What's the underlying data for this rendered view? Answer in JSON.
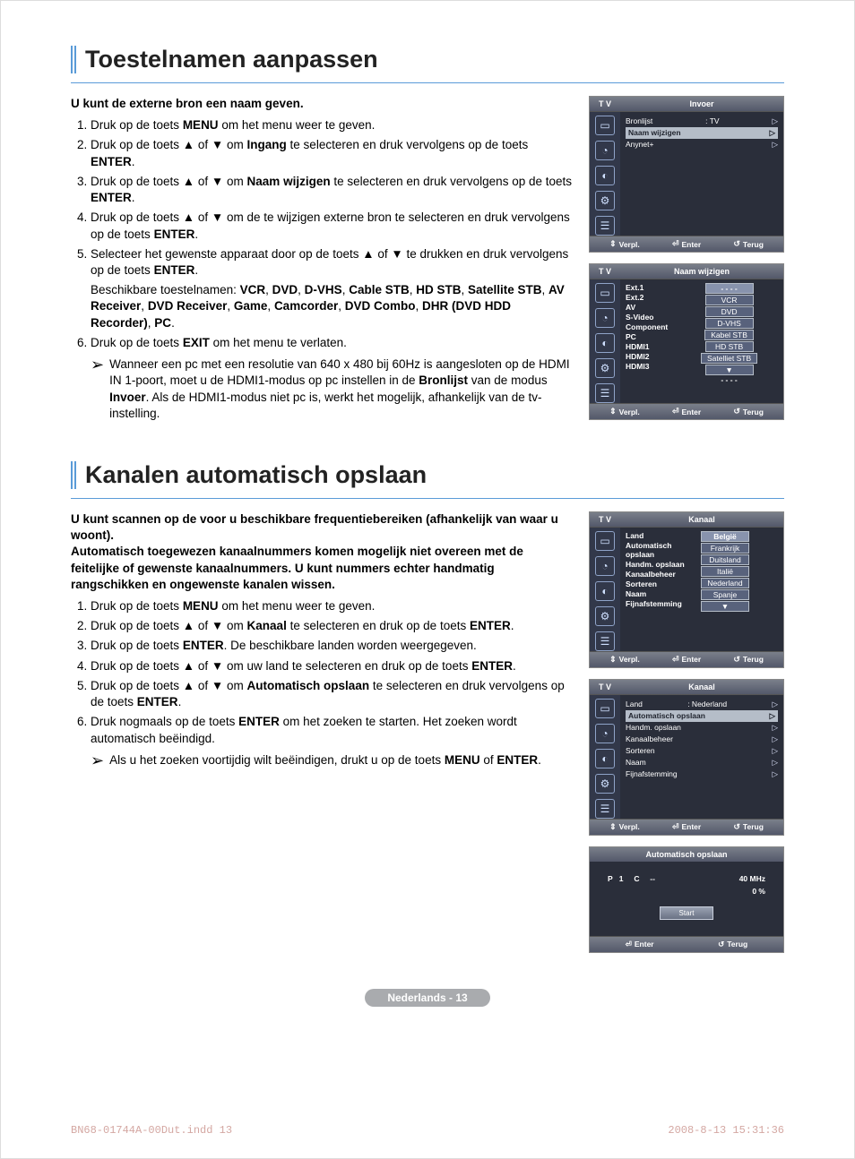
{
  "colors": {
    "accent_border": "#5a9bd8",
    "osd_bg": "#2a2e3a",
    "osd_header_grad_top": "#7a7f8a",
    "osd_header_grad_bot": "#53586a",
    "osd_highlight": "#b5bdc8",
    "osd_valbox": "#58627c",
    "page_badge_bg": "#a9abae",
    "footer_text": "#d4a7a2"
  },
  "section1": {
    "title": "Toestelnamen aanpassen",
    "intro": "U kunt de externe bron een naam geven.",
    "steps": {
      "s1": "Druk op de toets <b>MENU</b> om het menu weer te geven.",
      "s2": "Druk op de toets ▲ of ▼ om <b>Ingang</b> te selecteren en druk vervolgens op de toets <b>ENTER</b>.",
      "s3": "Druk op de toets ▲ of ▼ om <b>Naam wijzigen</b> te selecteren en druk vervolgens op de toets <b>ENTER</b>.",
      "s4": "Druk op de toets ▲ of ▼ om de te wijzigen externe bron te selecteren en druk vervolgens op de toets <b>ENTER</b>.",
      "s5a": "Selecteer het gewenste apparaat door op de toets ▲ of ▼ te drukken  en druk vervolgens op de toets <b>ENTER</b>.",
      "s5b": "Beschikbare toestelnamen: <b>VCR</b>, <b>DVD</b>, <b>D-VHS</b>, <b>Cable STB</b>, <b>HD STB</b>, <b>Satellite STB</b>, <b>AV Receiver</b>, <b>DVD Receiver</b>, <b>Game</b>, <b>Camcorder</b>, <b>DVD Combo</b>, <b>DHR (DVD HDD Recorder)</b>, <b>PC</b>.",
      "s6": "Druk op de toets <b>EXIT</b> om het menu te verlaten.",
      "s6note": "Wanneer een pc met een resolutie van 640 x 480 bij 60Hz is aangesloten op de HDMI IN 1-poort, moet u de HDMI1-modus op pc instellen in de <b>Bronlijst</b> van de modus <b>Invoer</b>. Als de HDMI1-modus niet pc is, werkt het mogelijk, afhankelijk van de tv-instelling."
    }
  },
  "section2": {
    "title": "Kanalen automatisch opslaan",
    "intro": "U kunt scannen op de voor u beschikbare frequentiebereiken (afhankelijk van waar u woont).\nAutomatisch toegewezen kanaalnummers komen mogelijk niet overeen met de feitelijke of gewenste kanaalnummers. U kunt nummers echter handmatig rangschikken en ongewenste kanalen wissen.",
    "steps": {
      "s1": "Druk op de toets <b>MENU</b> om het menu weer te geven.",
      "s2": "Druk op de toets ▲ of ▼ om <b>Kanaal</b> te selecteren en druk op de toets <b>ENTER</b>.",
      "s3": "Druk op de toets <b>ENTER</b>. De beschikbare landen worden weergegeven.",
      "s4": "Druk op de toets ▲ of ▼ om uw land te selecteren en druk op de toets <b>ENTER</b>.",
      "s5": "Druk op de toets ▲ of ▼ om <b>Automatisch opslaan</b> te selecteren en druk vervolgens op de toets <b>ENTER</b>.",
      "s6": "Druk nogmaals op de toets <b>ENTER</b> om het zoeken te starten. Het zoeken wordt automatisch beëindigd.",
      "s6note": "Als u het zoeken voortijdig wilt beëindigen, drukt u op de toets <b>MENU</b>  of <b>ENTER</b>."
    }
  },
  "osd_common": {
    "tv": "T V",
    "foot_move": "Verpl.",
    "foot_enter": "Enter",
    "foot_return": "Terug",
    "icon_glyphs": [
      "▭",
      "◔",
      "◐",
      "⚙",
      "☰"
    ]
  },
  "osd1": {
    "title": "Invoer",
    "rows": {
      "r1_lbl": "Bronlijst",
      "r1_val": ": TV",
      "r2_lbl": "Naam wijzigen",
      "r3_lbl": "Anynet+"
    }
  },
  "osd2": {
    "title": "Naam wijzigen",
    "keys": [
      "Ext.1",
      "Ext.2",
      "AV",
      "S-Video",
      "Component",
      "PC",
      "HDMI1",
      "HDMI2",
      "HDMI3"
    ],
    "dashes": "- - - -",
    "vals": [
      "VCR",
      "DVD",
      "D-VHS",
      "Kabel STB",
      "HD STB",
      "Satelliet STB"
    ]
  },
  "osd3": {
    "title": "Kanaal",
    "keys": [
      "Land",
      "Automatisch opslaan",
      "Handm. opslaan",
      "Kanaalbeheer",
      "Sorteren",
      "Naam",
      "Fijnafstemming"
    ],
    "vals": [
      "België",
      "Frankrijk",
      "Duitsland",
      "Italië",
      "Nederland",
      "Spanje"
    ]
  },
  "osd4": {
    "title": "Kanaal",
    "rows": {
      "r1_lbl": "Land",
      "r1_val": ": Nederland",
      "r2": "Automatisch opslaan",
      "r3": "Handm. opslaan",
      "r4": "Kanaalbeheer",
      "r5": "Sorteren",
      "r6": "Naam",
      "r7": "Fijnafstemming"
    }
  },
  "osd5": {
    "title": "Automatisch opslaan",
    "line_left_p": "P",
    "line_left_1": "1",
    "line_left_c": "C",
    "line_left_dash": "--",
    "line_right_top": "40 MHz",
    "line_right_bot": "0  %",
    "start": "Start"
  },
  "page_badge": "Nederlands - 13",
  "footer": {
    "left": "BN68-01744A-00Dut.indd   13",
    "right": "2008-8-13   15:31:36"
  }
}
